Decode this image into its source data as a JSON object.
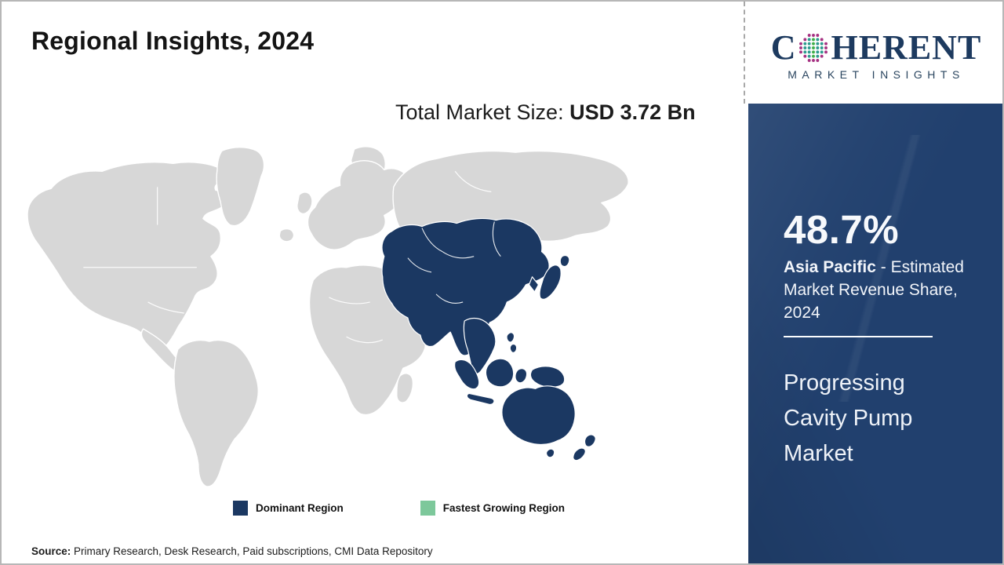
{
  "page": {
    "title": "Regional Insights, 2024"
  },
  "market_size": {
    "prefix": "Total Market Size: ",
    "value": "USD 3.72 Bn"
  },
  "map": {
    "legend": [
      {
        "label": "Dominant Region",
        "color": "#1b3862"
      },
      {
        "label": "Fastest Growing Region",
        "color": "#7dc89b"
      }
    ]
  },
  "chart_data": {
    "type": "choropleth",
    "title": "Regional Insights, 2024",
    "total_market_size": "USD 3.72 Bn",
    "year": "2024",
    "regions": [
      {
        "name": "Asia Pacific",
        "classification": "Dominant Region",
        "market_revenue_share_pct": 48.7
      }
    ],
    "legend_categories": [
      "Dominant Region",
      "Fastest Growing Region"
    ],
    "legend_position": "bottom"
  },
  "sidebar": {
    "share_value": "48.7%",
    "share_region": "Asia Pacific",
    "share_rest": " - Estimated Market Revenue Share, 2024",
    "product_name": "Progressing Cavity Pump Market"
  },
  "logo": {
    "word_start": "C",
    "word_end": "HERENT",
    "subtitle": "MARKET INSIGHTS"
  },
  "source": {
    "label": "Source:",
    "text": " Primary Research, Desk Research, Paid subscriptions, CMI Data Repository"
  },
  "colors": {
    "dominant_region": "#1b3862",
    "fastest_growing": "#7dc89b",
    "map_gray": "#d7d7d7",
    "map_border": "#ffffff",
    "sidebar_bg": "#21406e",
    "logo_navy": "#1d3a5f",
    "page_border": "#b7b7b7",
    "text_dark": "#1a1a1a",
    "globe_green": "#3faf49",
    "globe_teal": "#2e9b8f",
    "globe_magenta": "#a63282"
  }
}
